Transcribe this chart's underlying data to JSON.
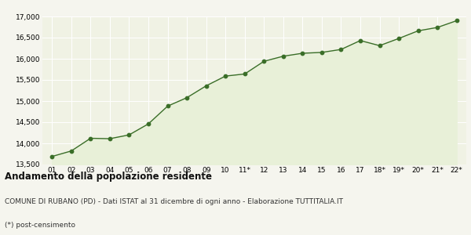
{
  "x_labels": [
    "01",
    "02",
    "03",
    "04",
    "05",
    "06",
    "07",
    "08",
    "09",
    "10",
    "11*",
    "12",
    "13",
    "14",
    "15",
    "16",
    "17",
    "18*",
    "19*",
    "20*",
    "21*",
    "22*"
  ],
  "y_values": [
    13690,
    13820,
    14120,
    14110,
    14200,
    14460,
    14880,
    15080,
    15360,
    15590,
    15640,
    15940,
    16060,
    16130,
    16150,
    16220,
    16430,
    16310,
    16480,
    16660,
    16740,
    16900
  ],
  "line_color": "#3a6e28",
  "fill_color": "#e8f0d8",
  "marker_color": "#3a6e28",
  "bg_color": "#f5f5ee",
  "plot_bg_color": "#f0f2e4",
  "grid_color": "#ffffff",
  "ylim": [
    13500,
    17000
  ],
  "yticks": [
    13500,
    14000,
    14500,
    15000,
    15500,
    16000,
    16500,
    17000
  ],
  "title": "Andamento della popolazione residente",
  "subtitle": "COMUNE DI RUBANO (PD) - Dati ISTAT al 31 dicembre di ogni anno - Elaborazione TUTTITALIA.IT",
  "footnote": "(*) post-censimento",
  "title_fontsize": 8.5,
  "subtitle_fontsize": 6.5,
  "footnote_fontsize": 6.5,
  "tick_fontsize": 6.5
}
